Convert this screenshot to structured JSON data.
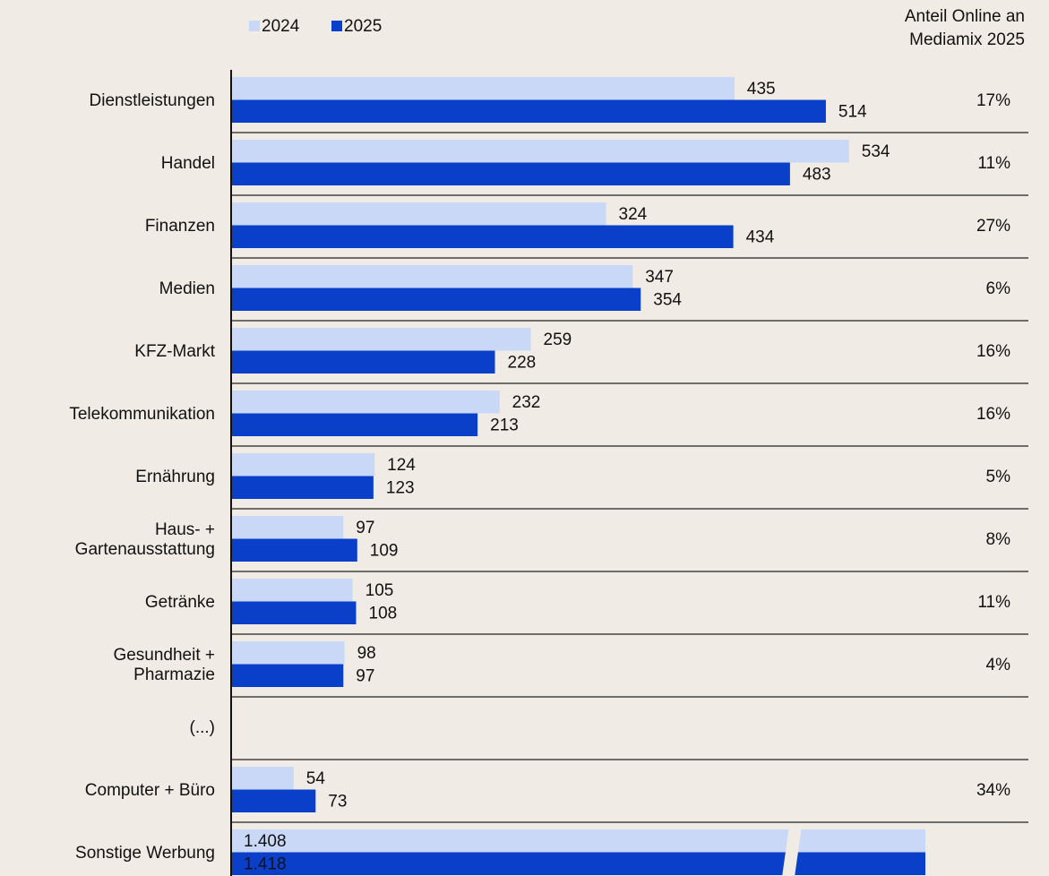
{
  "chart_data": {
    "type": "bar",
    "orientation": "horizontal",
    "categories": [
      "Dienstleistungen",
      "Handel",
      "Finanzen",
      "Medien",
      "KFZ-Markt",
      "Telekommunikation",
      "Ernährung",
      "Haus- +\nGartenausstattung",
      "Getränke",
      "Gesundheit +\nPharmazie",
      "(...)",
      "Computer + Büro",
      "Sonstige Werbung"
    ],
    "series": [
      {
        "name": "2024",
        "color": "#c9d8f7",
        "values": [
          435,
          534,
          324,
          347,
          259,
          232,
          124,
          97,
          105,
          98,
          null,
          54,
          1408
        ],
        "value_labels": [
          "435",
          "534",
          "324",
          "347",
          "259",
          "232",
          "124",
          "97",
          "105",
          "98",
          null,
          "54",
          "1.408"
        ]
      },
      {
        "name": "2025",
        "color": "#0a3fc9",
        "values": [
          514,
          483,
          434,
          354,
          228,
          213,
          123,
          109,
          108,
          97,
          null,
          73,
          1418
        ],
        "value_labels": [
          "514",
          "483",
          "434",
          "354",
          "228",
          "213",
          "123",
          "109",
          "108",
          "97",
          null,
          "73",
          "1.418"
        ]
      }
    ],
    "xlim": [
      0,
      600
    ],
    "online_share": {
      "title": "Anteil  Online an\nMediamix 2025",
      "values": [
        17,
        11,
        27,
        6,
        16,
        16,
        5,
        8,
        11,
        4,
        null,
        34,
        null
      ],
      "value_labels": [
        "17%",
        "11%",
        "27%",
        "6%",
        "16%",
        "16%",
        "5%",
        "8%",
        "11%",
        "4%",
        null,
        "34%",
        null
      ]
    }
  }
}
